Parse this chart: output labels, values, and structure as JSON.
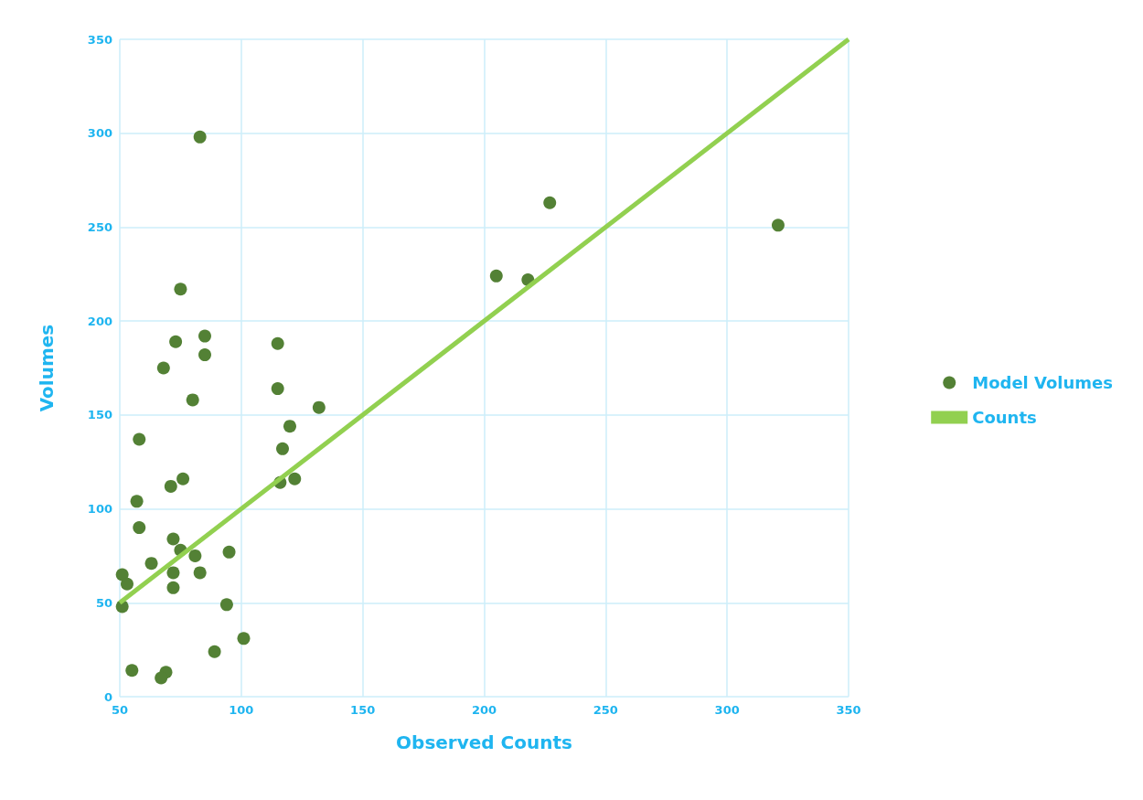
{
  "chart_data": {
    "type": "scatter",
    "xlabel": "Observed Counts",
    "ylabel": "Volumes",
    "xlim": [
      50,
      350
    ],
    "ylim": [
      0,
      350
    ],
    "xticks": [
      50,
      100,
      150,
      200,
      250,
      300,
      350
    ],
    "yticks": [
      0,
      50,
      100,
      150,
      200,
      250,
      300,
      350
    ],
    "grid": true,
    "legend": "right",
    "series": [
      {
        "name": "Model Volumes",
        "marker": "circle",
        "color": "#538135",
        "x": [
          83,
          75,
          85,
          73,
          85,
          68,
          80,
          58,
          76,
          71,
          57,
          58,
          72,
          75,
          81,
          63,
          51,
          72,
          83,
          53,
          72,
          51,
          94,
          95,
          101,
          89,
          55,
          67,
          69,
          67,
          115,
          115,
          120,
          117,
          116,
          122,
          132,
          205,
          218,
          227,
          321
        ],
        "values": [
          298,
          217,
          192,
          189,
          182,
          175,
          158,
          137,
          116,
          112,
          104,
          90,
          84,
          78,
          75,
          71,
          65,
          66,
          66,
          60,
          58,
          48,
          49,
          77,
          31,
          24,
          14,
          null,
          13,
          10,
          188,
          164,
          144,
          132,
          114,
          116,
          154,
          224,
          222,
          263,
          251
        ]
      },
      {
        "name": "Counts",
        "type": "line",
        "marker": "none",
        "color": "#92d050",
        "x": [
          50,
          350
        ],
        "values": [
          50,
          350
        ]
      }
    ]
  }
}
